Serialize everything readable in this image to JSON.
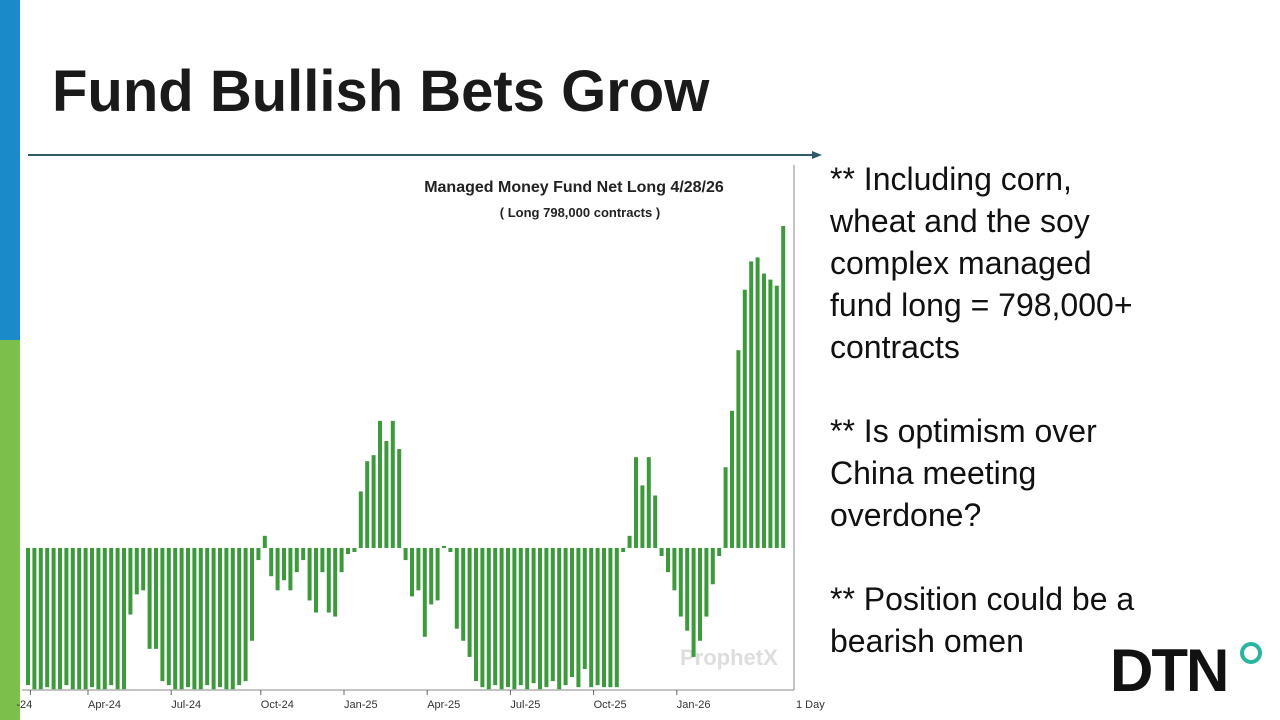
{
  "title": "Fund Bullish Bets Grow",
  "chart_data": {
    "type": "bar",
    "title": "Managed Money Fund Net Long 4/28/26",
    "subtitle": "( Long 798,000 contracts )",
    "watermark": "ProphetX",
    "x_axis_note": "1 Day",
    "color": "#3c9a3c",
    "ylim": [
      -352000,
      949000
    ],
    "categories": [
      null,
      "-24",
      null,
      null,
      null,
      null,
      null,
      null,
      null,
      null,
      "Apr-24",
      null,
      null,
      null,
      null,
      null,
      null,
      null,
      null,
      null,
      null,
      null,
      null,
      "Jul-24",
      null,
      null,
      null,
      null,
      null,
      null,
      null,
      null,
      null,
      null,
      null,
      null,
      null,
      "Oct-24",
      null,
      null,
      null,
      null,
      null,
      null,
      null,
      null,
      null,
      null,
      null,
      null,
      "Jan-25",
      null,
      null,
      null,
      null,
      null,
      null,
      null,
      null,
      null,
      null,
      null,
      null,
      "Apr-25",
      null,
      null,
      null,
      null,
      null,
      null,
      null,
      null,
      null,
      null,
      null,
      null,
      "Jul-25",
      null,
      null,
      null,
      null,
      null,
      null,
      null,
      null,
      null,
      null,
      null,
      null,
      "Oct-25",
      null,
      null,
      null,
      null,
      null,
      null,
      null,
      null,
      null,
      null,
      null,
      null,
      "Jan-26",
      null,
      null,
      null,
      null,
      null,
      null,
      null,
      null,
      null,
      null,
      null,
      null,
      null,
      null,
      null,
      null
    ],
    "values": [
      -340000,
      -350000,
      -350000,
      -345000,
      -350000,
      -350000,
      -340000,
      -350000,
      -350000,
      -350000,
      -345000,
      -350000,
      -350000,
      -340000,
      -350000,
      -350000,
      -165000,
      -115000,
      -105000,
      -250000,
      -250000,
      -330000,
      -340000,
      -350000,
      -350000,
      -345000,
      -350000,
      -350000,
      -340000,
      -350000,
      -345000,
      -350000,
      -350000,
      -340000,
      -330000,
      -230000,
      -30000,
      30000,
      -70000,
      -105000,
      -80000,
      -105000,
      -60000,
      -30000,
      -130000,
      -160000,
      -60000,
      -160000,
      -170000,
      -60000,
      -15000,
      -10000,
      140000,
      215000,
      230000,
      315000,
      265000,
      315000,
      245000,
      -30000,
      -120000,
      -105000,
      -220000,
      -140000,
      -130000,
      5000,
      -10000,
      -200000,
      -230000,
      -270000,
      -330000,
      -345000,
      -350000,
      -340000,
      -350000,
      -345000,
      -350000,
      -340000,
      -350000,
      -335000,
      -350000,
      -345000,
      -330000,
      -350000,
      -340000,
      -320000,
      -345000,
      -300000,
      -345000,
      -340000,
      -345000,
      -345000,
      -345000,
      -10000,
      30000,
      225000,
      155000,
      225000,
      130000,
      -20000,
      -60000,
      -105000,
      -170000,
      -205000,
      -270000,
      -230000,
      -170000,
      -90000,
      -20000,
      200000,
      340000,
      490000,
      640000,
      710000,
      720000,
      680000,
      665000,
      650000,
      798000
    ]
  },
  "notes": [
    [
      "** Including corn,",
      "wheat and the soy",
      "complex managed",
      "fund long = 798,000+",
      "contracts"
    ],
    [
      "** Is optimism over",
      "China meeting",
      "overdone?"
    ],
    [
      "** Position could be a",
      "bearish omen"
    ]
  ],
  "logo": "DTN"
}
